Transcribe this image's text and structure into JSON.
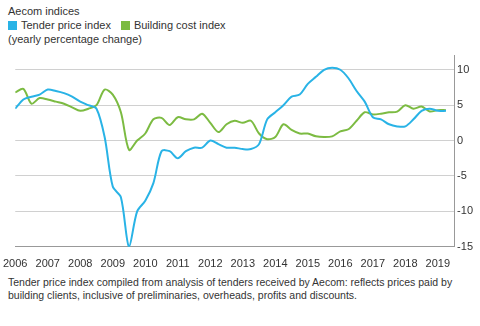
{
  "chart_data": {
    "type": "line",
    "title": "Aecom indices",
    "subtitle": "(yearly percentage change)",
    "caption": "Tender price index compiled from analysis of tenders received by Aecom: reflects prices paid by building clients, inclusive of preliminaries, overheads, profits and discounts.",
    "legend": "top-left",
    "grid": true,
    "x": [
      2006,
      2006.25,
      2006.5,
      2006.75,
      2007,
      2007.25,
      2007.5,
      2007.75,
      2008,
      2008.25,
      2008.5,
      2008.75,
      2009,
      2009.25,
      2009.5,
      2009.75,
      2010,
      2010.25,
      2010.5,
      2010.75,
      2011,
      2011.25,
      2011.5,
      2011.75,
      2012,
      2012.25,
      2012.5,
      2012.75,
      2013,
      2013.25,
      2013.5,
      2013.75,
      2014,
      2014.25,
      2014.5,
      2014.75,
      2015,
      2015.25,
      2015.5,
      2015.75,
      2016,
      2016.25,
      2016.5,
      2016.75,
      2017,
      2017.25,
      2017.5,
      2017.75,
      2018,
      2018.25,
      2018.5,
      2018.75,
      2019,
      2019.25
    ],
    "xlim": [
      2006,
      2019.5
    ],
    "xticks": [
      2006,
      2007,
      2008,
      2009,
      2010,
      2011,
      2012,
      2013,
      2014,
      2015,
      2016,
      2017,
      2018,
      2019
    ],
    "ylim": [
      -15,
      12
    ],
    "yticks": [
      -15,
      -10,
      -5,
      0,
      5,
      10
    ],
    "series": [
      {
        "name": "Tender price index",
        "color": "#29b3e6",
        "values": [
          4.5,
          5.8,
          6.2,
          6.5,
          7.2,
          7.0,
          6.7,
          6.2,
          5.5,
          5.0,
          4.5,
          0.5,
          -6.5,
          -8,
          -15,
          -10,
          -8.5,
          -6,
          -1.5,
          -1.5,
          -2.5,
          -1.5,
          -1,
          -1,
          0,
          -0.5,
          -1,
          -1,
          -1.2,
          -1.2,
          -0.5,
          3,
          4,
          5,
          6.2,
          6.5,
          8,
          9,
          10,
          10.3,
          10,
          8.8,
          7,
          5.5,
          3.3,
          3,
          2.3,
          2.0,
          2.0,
          3,
          4.2,
          4.5,
          4.2,
          4.2
        ]
      },
      {
        "name": "Building cost index",
        "color": "#7cbb42",
        "values": [
          6.8,
          7.3,
          5.2,
          6,
          5.8,
          5.5,
          5.2,
          4.7,
          4.2,
          4.5,
          5,
          7.2,
          6.5,
          4,
          -1.3,
          0,
          1,
          3,
          3.2,
          2.2,
          3.3,
          3.0,
          3.0,
          3.8,
          2.5,
          1.2,
          2.3,
          2.8,
          2.5,
          2.8,
          1,
          0.2,
          0.5,
          2.3,
          1.5,
          1,
          1,
          0.6,
          0.5,
          0.6,
          1.3,
          1.6,
          2.8,
          4,
          3.7,
          3.8,
          4.0,
          4.1,
          5,
          4.5,
          4.8,
          4.1,
          4.3,
          4.3
        ]
      }
    ]
  }
}
